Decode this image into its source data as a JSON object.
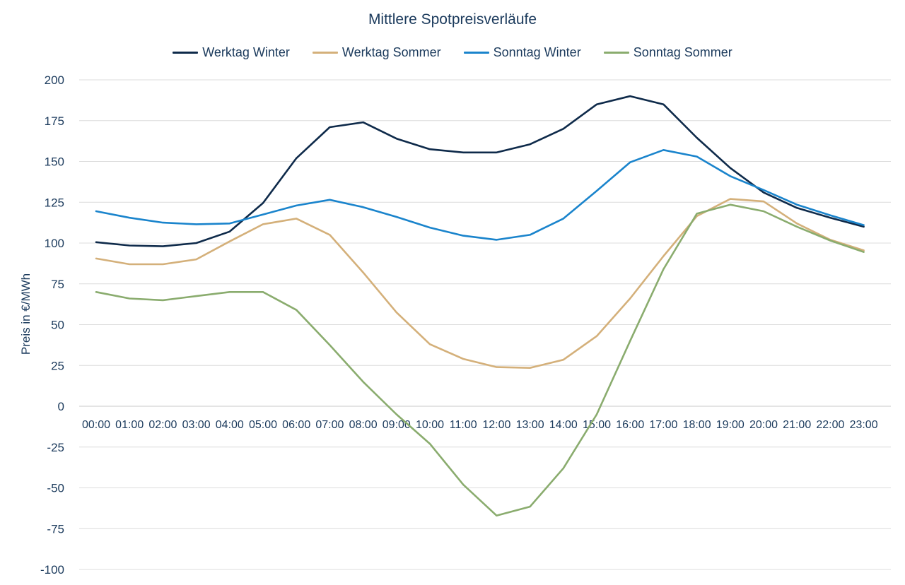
{
  "chart_data": {
    "type": "line",
    "title": "Mittlere Spotpreisverläufe",
    "xlabel": "",
    "ylabel": "Preis in €/MWh",
    "ylim": [
      -100,
      200
    ],
    "yticks": [
      200,
      175,
      150,
      125,
      100,
      75,
      50,
      25,
      0,
      -25,
      -50,
      -75,
      -100
    ],
    "grid": "horizontal",
    "legend_position": "top",
    "categories": [
      "00:00",
      "01:00",
      "02:00",
      "03:00",
      "04:00",
      "05:00",
      "06:00",
      "07:00",
      "08:00",
      "09:00",
      "10:00",
      "11:00",
      "12:00",
      "13:00",
      "14:00",
      "15:00",
      "16:00",
      "17:00",
      "18:00",
      "19:00",
      "20:00",
      "21:00",
      "22:00",
      "23:00"
    ],
    "series": [
      {
        "name": "Werktag Winter",
        "color": "#0e2a4a",
        "values": [
          100.5,
          98.5,
          98,
          100,
          107,
          124.5,
          152,
          171,
          174,
          164,
          157.5,
          155.5,
          155.5,
          160.5,
          170,
          185,
          190,
          185,
          164.5,
          146,
          131,
          121.5,
          115.5,
          110
        ]
      },
      {
        "name": "Werktag Sommer",
        "color": "#d4b07a",
        "values": [
          90.5,
          87,
          87,
          90,
          101,
          111.5,
          115,
          105,
          82,
          57.5,
          38,
          29,
          24,
          23.5,
          28.5,
          43,
          66,
          92,
          116.5,
          127,
          125.5,
          112,
          102,
          95.5
        ]
      },
      {
        "name": "Sonntag Winter",
        "color": "#1a84cc",
        "values": [
          119.5,
          115.5,
          112.5,
          111.5,
          112,
          117.5,
          123,
          126.5,
          122,
          116,
          109.5,
          104.5,
          102,
          105,
          115,
          132,
          149.5,
          157,
          153,
          141,
          132.5,
          123.5,
          117,
          111
        ]
      },
      {
        "name": "Sonntag Sommer",
        "color": "#8aac6e",
        "values": [
          70,
          66,
          65,
          67.5,
          70,
          70,
          59,
          37.5,
          15,
          -5,
          -23,
          -48,
          -67,
          -61.5,
          -38,
          -5,
          40,
          84,
          118,
          123.5,
          119.5,
          110,
          101.5,
          94.5
        ]
      }
    ]
  }
}
